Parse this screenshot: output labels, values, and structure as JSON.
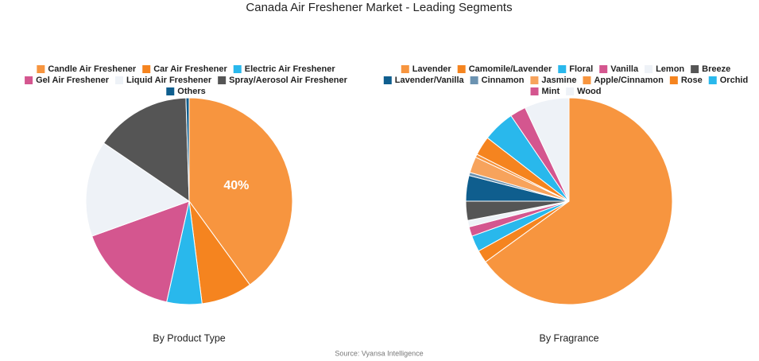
{
  "title": "Canada Air Freshener Market - Leading Segments",
  "source": "Source: Vyansa Intelligence",
  "chart_data": [
    {
      "type": "pie",
      "subtitle": "By Product Type",
      "categories": [
        "Candle Air Freshener",
        "Car Air Freshener",
        "Electric Air Freshener",
        "Gel Air Freshener",
        "Liquid Air Freshener",
        "Spray/Aerosol Air Freshener",
        "Others"
      ],
      "values": [
        40,
        8,
        5.5,
        16,
        15,
        15,
        0.5
      ],
      "value_labels": [
        "40%",
        null,
        null,
        null,
        null,
        null,
        null
      ],
      "colors": [
        "#f7953f",
        "#f5841f",
        "#29b8ec",
        "#d4568f",
        "#eef2f7",
        "#555555",
        "#0f5e8e"
      ]
    },
    {
      "type": "pie",
      "subtitle": "By Fragrance",
      "categories": [
        "Lavender",
        "Camomile/Lavender",
        "Floral",
        "Vanilla",
        "Lemon",
        "Breeze",
        "Lavender/Vanilla",
        "Cinnamon",
        "Jasmine",
        "Apple/Cinnamon",
        "Rose",
        "Orchid",
        "Mint",
        "Wood"
      ],
      "values": [
        65,
        2,
        2.5,
        1.5,
        1,
        3,
        4,
        0.5,
        2.5,
        0.5,
        3,
        5,
        2.5,
        7
      ],
      "colors": [
        "#f7953f",
        "#f5841f",
        "#29b8ec",
        "#d4568f",
        "#eef2f7",
        "#555555",
        "#0f5e8e",
        "#6b93b1",
        "#f7a35c",
        "#f7953f",
        "#f5841f",
        "#29b8ec",
        "#d4568f",
        "#eef2f7"
      ]
    }
  ]
}
